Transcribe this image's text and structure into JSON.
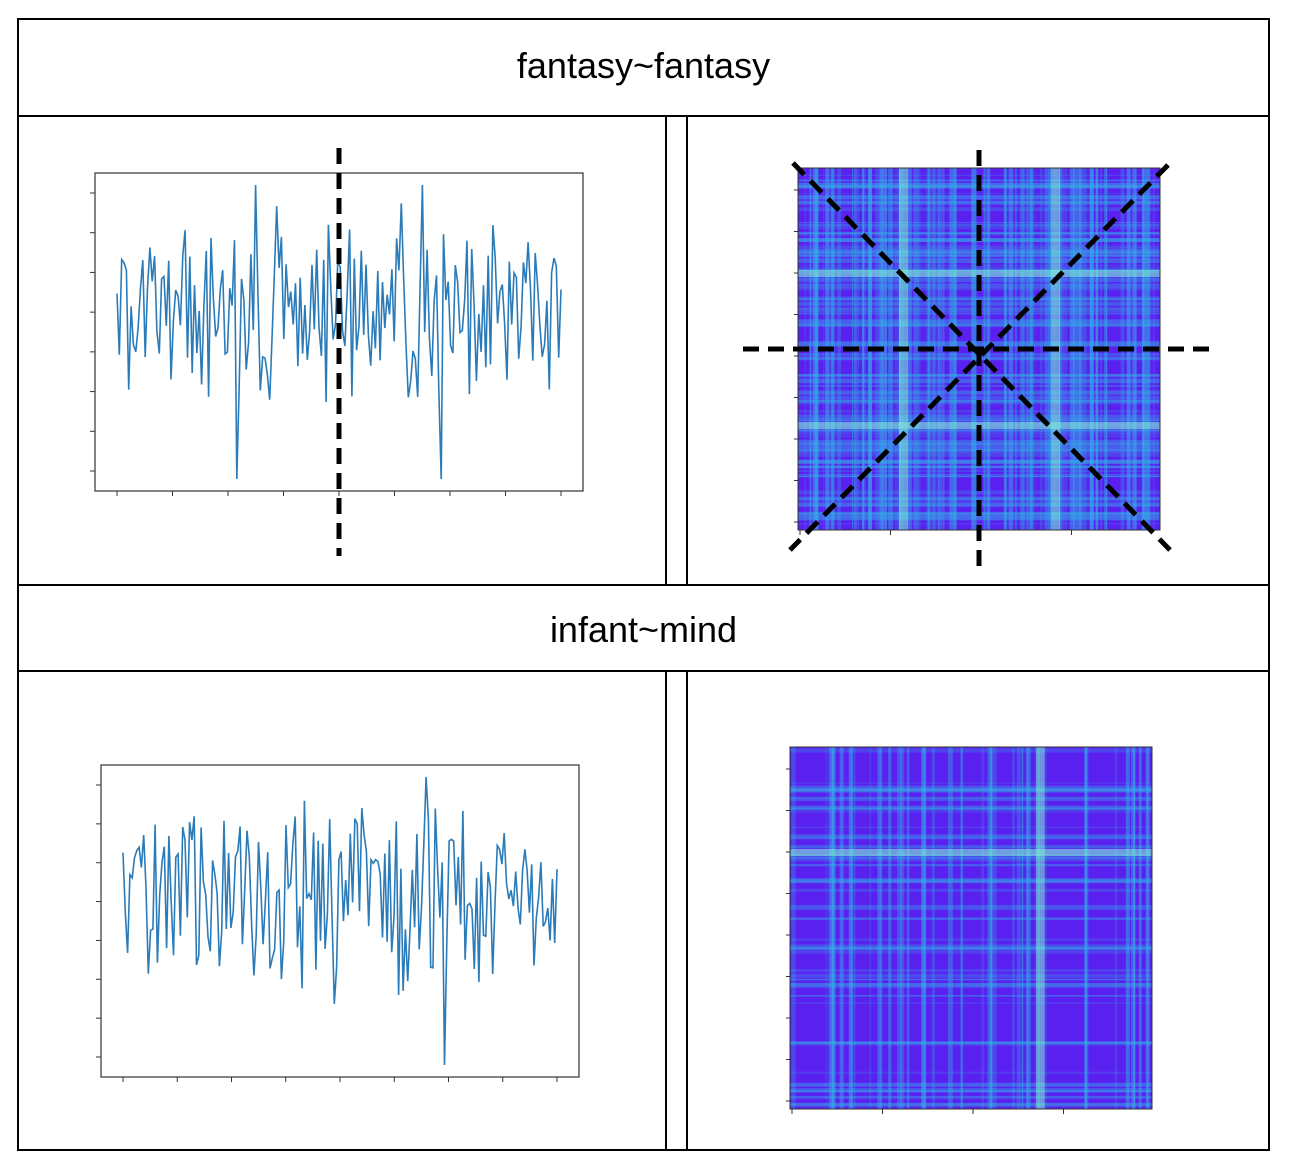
{
  "rows": [
    {
      "title": "fantasy~fantasy"
    },
    {
      "title": "infant~mind"
    }
  ],
  "colors": {
    "line_series": "#2b7bb9",
    "heatmap_base": "#5a20f0",
    "heatmap_band": "#2fb7e6",
    "heatmap_bright": "#7ef0d6",
    "guide_lines": "#000000",
    "border": "#000000"
  },
  "panels": [
    {
      "id": "fantasy-line",
      "kind": "line",
      "seed": 7,
      "points": 190,
      "symmetric": true,
      "spikes_down": [
        0.27,
        0.73
      ],
      "spike_up": [
        0.31,
        0.69
      ],
      "guides": [
        "vertical-center"
      ]
    },
    {
      "id": "fantasy-heatmap",
      "kind": "heatmap",
      "seed": 11,
      "symmetric": true,
      "bright_bands": [
        0.29,
        0.71
      ],
      "horizontal_bright_bands": [
        0.29,
        0.71
      ],
      "guides": [
        "vertical-center",
        "horizontal-center",
        "diagonal",
        "anti-diagonal"
      ]
    },
    {
      "id": "infant-line",
      "kind": "line",
      "seed": 23,
      "points": 190,
      "symmetric": false,
      "spikes_down": [
        0.74
      ],
      "spike_up": [
        0.7
      ],
      "guides": []
    },
    {
      "id": "infant-heatmap",
      "kind": "heatmap",
      "seed": 31,
      "symmetric": false,
      "bright_bands": [
        0.69
      ],
      "horizontal_bright_bands": [
        0.29
      ],
      "guides": []
    }
  ]
}
